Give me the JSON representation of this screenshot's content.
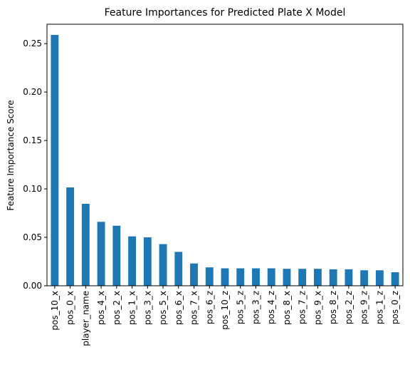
{
  "chart_data": {
    "type": "bar",
    "title": "Feature Importances for Predicted Plate X Model",
    "y_label": "Feature Importance Score",
    "categories": [
      "pos_10_x",
      "pos_0_x",
      "player_name",
      "pos_4_x",
      "pos_2_x",
      "pos_1_x",
      "pos_3_x",
      "pos_5_x",
      "pos_6_x",
      "pos_7_x",
      "pos_6_z",
      "pos_10_z",
      "pos_5_z",
      "pos_3_z",
      "pos_4_z",
      "pos_8_x",
      "pos_7_z",
      "pos_9_x",
      "pos_8_z",
      "pos_2_z",
      "pos_9_z",
      "pos_1_z",
      "pos_0_z"
    ],
    "values": [
      0.259,
      0.1015,
      0.0846,
      0.066,
      0.062,
      0.051,
      0.05,
      0.043,
      0.035,
      0.023,
      0.019,
      0.018,
      0.018,
      0.018,
      0.018,
      0.0175,
      0.0175,
      0.0175,
      0.017,
      0.017,
      0.016,
      0.016,
      0.014
    ],
    "color": "#1f77b4",
    "ylim": [
      0,
      0.27
    ],
    "yticks": [
      {
        "value": 0,
        "label": "0.00"
      },
      {
        "value": 0.05,
        "label": "0.05"
      },
      {
        "value": 0.1,
        "label": "0.10"
      },
      {
        "value": 0.15,
        "label": "0.15"
      },
      {
        "value": 0.2,
        "label": "0.20"
      },
      {
        "value": 0.25,
        "label": "0.25"
      }
    ],
    "grid": false
  }
}
